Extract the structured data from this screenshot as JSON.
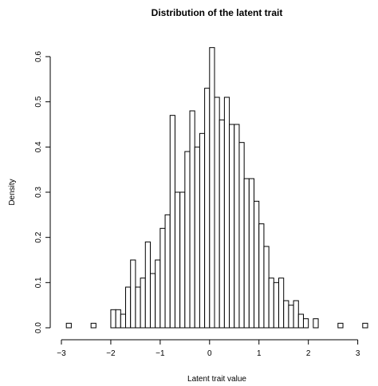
{
  "chart_data": {
    "type": "bar",
    "title": "Distribution of the latent trait",
    "xlabel": "Latent trait value",
    "ylabel": "Density",
    "xlim": [
      -3,
      3.2
    ],
    "ylim": [
      0,
      0.62
    ],
    "x_ticks": [
      "−3",
      "−2",
      "−1",
      "0",
      "1",
      "2",
      "3"
    ],
    "y_ticks": [
      "0.0",
      "0.1",
      "0.2",
      "0.3",
      "0.4",
      "0.5",
      "0.6"
    ],
    "bin_width": 0.1,
    "bins": [
      {
        "x0": -2.9,
        "value": 0.01
      },
      {
        "x0": -2.4,
        "value": 0.01
      },
      {
        "x0": -2.0,
        "value": 0.04
      },
      {
        "x0": -1.9,
        "value": 0.04
      },
      {
        "x0": -1.8,
        "value": 0.03
      },
      {
        "x0": -1.7,
        "value": 0.09
      },
      {
        "x0": -1.6,
        "value": 0.15
      },
      {
        "x0": -1.5,
        "value": 0.09
      },
      {
        "x0": -1.4,
        "value": 0.11
      },
      {
        "x0": -1.3,
        "value": 0.19
      },
      {
        "x0": -1.2,
        "value": 0.12
      },
      {
        "x0": -1.1,
        "value": 0.15
      },
      {
        "x0": -1.0,
        "value": 0.22
      },
      {
        "x0": -0.9,
        "value": 0.25
      },
      {
        "x0": -0.8,
        "value": 0.47
      },
      {
        "x0": -0.7,
        "value": 0.3
      },
      {
        "x0": -0.6,
        "value": 0.3
      },
      {
        "x0": -0.5,
        "value": 0.39
      },
      {
        "x0": -0.4,
        "value": 0.48
      },
      {
        "x0": -0.3,
        "value": 0.4
      },
      {
        "x0": -0.2,
        "value": 0.43
      },
      {
        "x0": -0.1,
        "value": 0.53
      },
      {
        "x0": 0.0,
        "value": 0.62
      },
      {
        "x0": 0.1,
        "value": 0.51
      },
      {
        "x0": 0.2,
        "value": 0.46
      },
      {
        "x0": 0.3,
        "value": 0.51
      },
      {
        "x0": 0.4,
        "value": 0.45
      },
      {
        "x0": 0.5,
        "value": 0.45
      },
      {
        "x0": 0.6,
        "value": 0.41
      },
      {
        "x0": 0.7,
        "value": 0.33
      },
      {
        "x0": 0.8,
        "value": 0.33
      },
      {
        "x0": 0.9,
        "value": 0.28
      },
      {
        "x0": 1.0,
        "value": 0.23
      },
      {
        "x0": 1.1,
        "value": 0.18
      },
      {
        "x0": 1.2,
        "value": 0.11
      },
      {
        "x0": 1.3,
        "value": 0.1
      },
      {
        "x0": 1.4,
        "value": 0.11
      },
      {
        "x0": 1.5,
        "value": 0.06
      },
      {
        "x0": 1.6,
        "value": 0.05
      },
      {
        "x0": 1.7,
        "value": 0.06
      },
      {
        "x0": 1.8,
        "value": 0.03
      },
      {
        "x0": 1.9,
        "value": 0.02
      },
      {
        "x0": 2.1,
        "value": 0.02
      },
      {
        "x0": 2.6,
        "value": 0.01
      },
      {
        "x0": 3.1,
        "value": 0.01
      }
    ],
    "bar_fill": "#ffffff",
    "bar_stroke": "#000000",
    "grid": false
  }
}
